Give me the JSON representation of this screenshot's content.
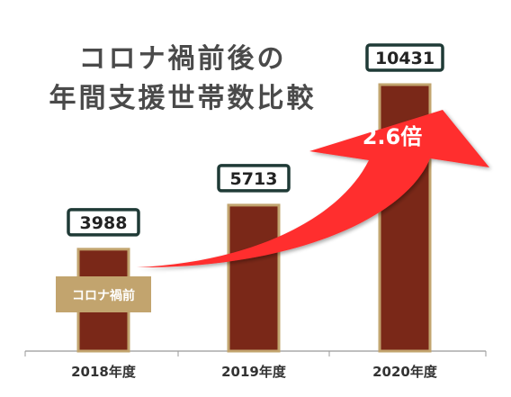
{
  "title_lines": [
    "コロナ禍前後の",
    "年間支援世帯数比較"
  ],
  "chart_data": {
    "type": "bar",
    "title": "コロナ禍前後の年間支援世帯数比較",
    "categories": [
      "2018年度",
      "2019年度",
      "2020年度"
    ],
    "values": [
      3988,
      5713,
      10431
    ],
    "ylim": [
      0,
      11000
    ],
    "value_labels": [
      "3988",
      "5713",
      "10431"
    ],
    "annotations": {
      "growth_arrow_label": "2.6倍",
      "pre_covid_badge": "コロナ禍前"
    },
    "grid": false
  },
  "colors": {
    "bar_fill": "#7a2818",
    "bar_border": "#c2a46e",
    "label_box_border": "#1f3a36",
    "arrow_red": "#ff2e2e",
    "badge_fill": "#c2a46e",
    "badge_text": "#ffffff",
    "title_text": "#4a4a4a",
    "axis_line": "#999999"
  }
}
